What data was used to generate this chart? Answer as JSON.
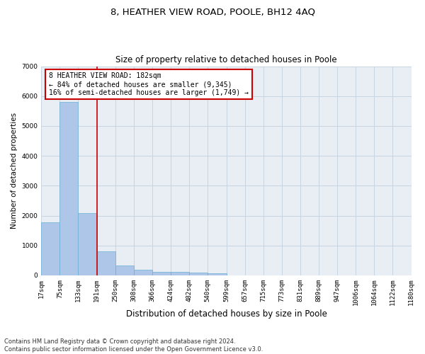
{
  "title": "8, HEATHER VIEW ROAD, POOLE, BH12 4AQ",
  "subtitle": "Size of property relative to detached houses in Poole",
  "xlabel": "Distribution of detached houses by size in Poole",
  "ylabel": "Number of detached properties",
  "bin_edges": [
    17,
    75,
    133,
    191,
    250,
    308,
    366,
    424,
    482,
    540,
    599,
    657,
    715,
    773,
    831,
    889,
    947,
    1006,
    1064,
    1122,
    1180
  ],
  "bin_labels": [
    "17sqm",
    "75sqm",
    "133sqm",
    "191sqm",
    "250sqm",
    "308sqm",
    "366sqm",
    "424sqm",
    "482sqm",
    "540sqm",
    "599sqm",
    "657sqm",
    "715sqm",
    "773sqm",
    "831sqm",
    "889sqm",
    "947sqm",
    "1006sqm",
    "1064sqm",
    "1122sqm",
    "1180sqm"
  ],
  "bar_values": [
    1780,
    5800,
    2080,
    800,
    340,
    200,
    120,
    110,
    100,
    80,
    0,
    0,
    0,
    0,
    0,
    0,
    0,
    0,
    0,
    0
  ],
  "bar_color": "#aec6e8",
  "bar_edge_color": "#6aaed6",
  "vline_x": 191,
  "vline_color": "#cc0000",
  "annotation_line1": "8 HEATHER VIEW ROAD: 182sqm",
  "annotation_line2": "← 84% of detached houses are smaller (9,345)",
  "annotation_line3": "16% of semi-detached houses are larger (1,749) →",
  "annotation_box_color": "#ffffff",
  "annotation_box_edge_color": "#cc0000",
  "ylim": [
    0,
    7000
  ],
  "yticks": [
    0,
    1000,
    2000,
    3000,
    4000,
    5000,
    6000,
    7000
  ],
  "grid_color": "#c8d4e0",
  "bg_color": "#e8eef4",
  "footnote": "Contains HM Land Registry data © Crown copyright and database right 2024.\nContains public sector information licensed under the Open Government Licence v3.0.",
  "title_fontsize": 9.5,
  "subtitle_fontsize": 8.5,
  "ylabel_fontsize": 7.5,
  "xlabel_fontsize": 8.5,
  "tick_fontsize": 6.5,
  "annotation_fontsize": 7.0,
  "footnote_fontsize": 6.0
}
